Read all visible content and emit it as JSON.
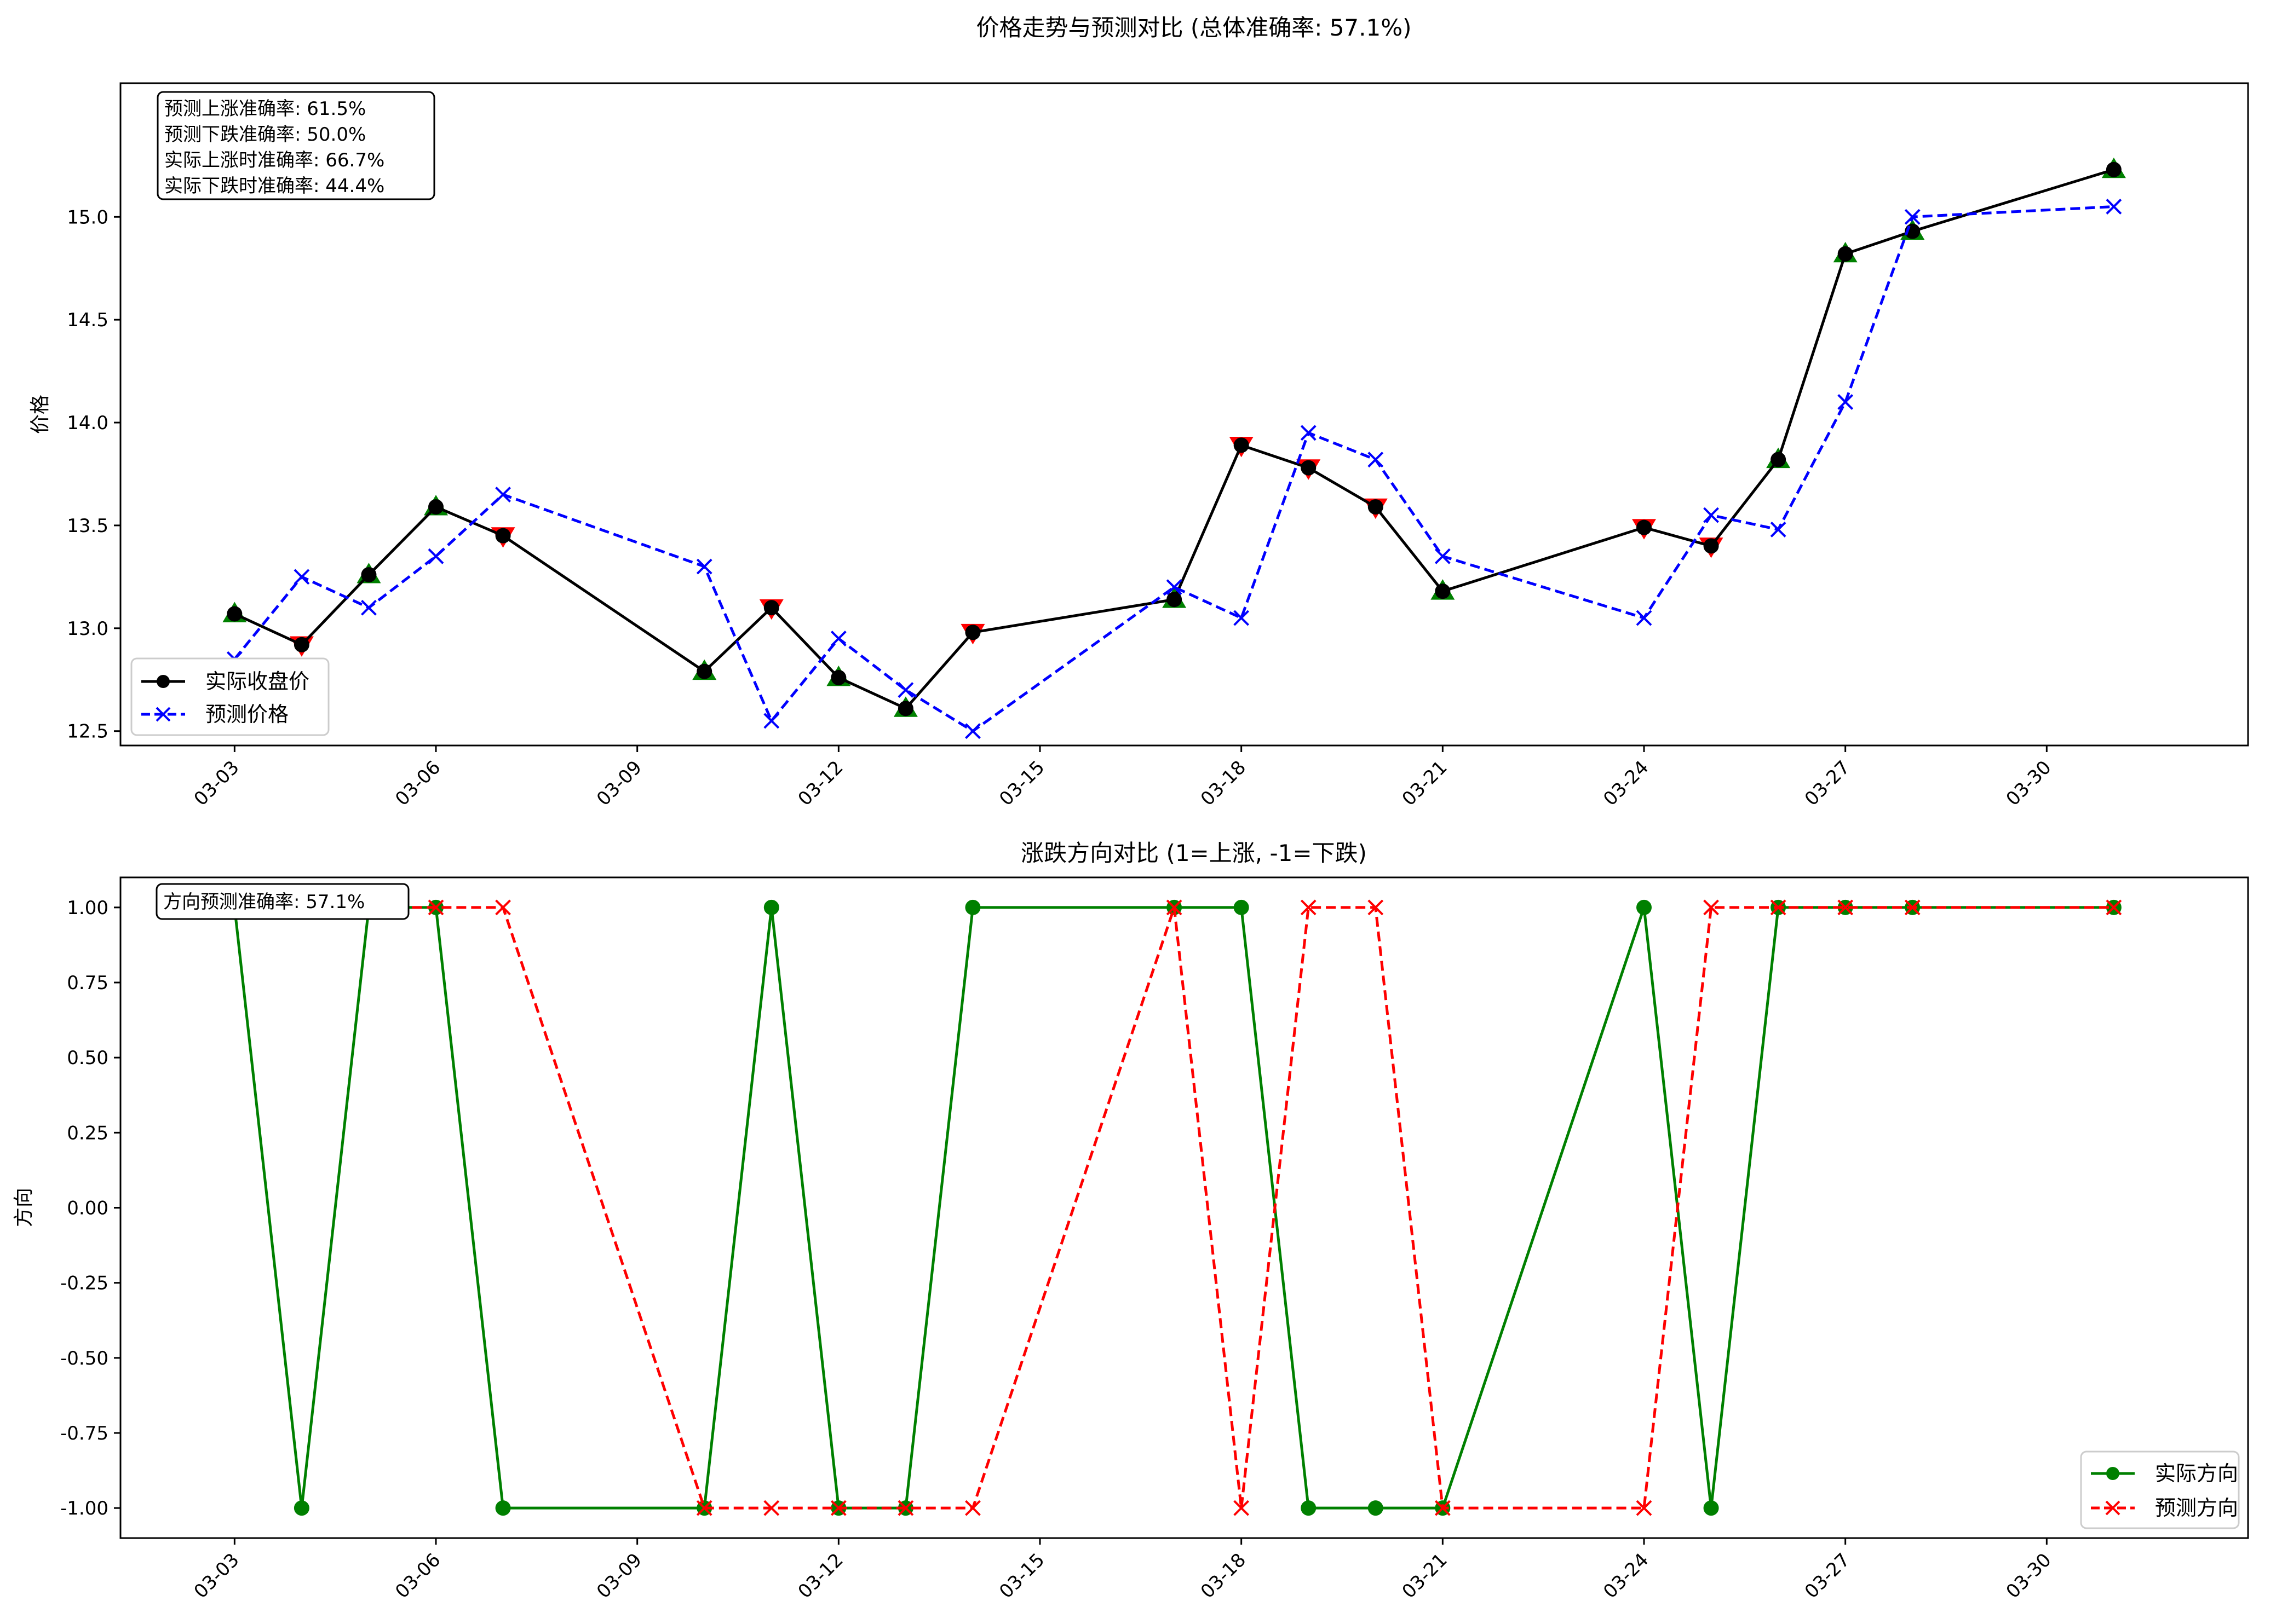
{
  "figure": {
    "top_title": "价格走势与预测对比 (总体准确率: 57.1%)",
    "bottom_title": "涨跌方向对比 (1=上涨, -1=下跌)"
  },
  "chart_data": [
    {
      "type": "line",
      "title": "价格走势与预测对比 (总体准确率: 57.1%)",
      "xlabel": "",
      "ylabel": "价格",
      "x": [
        "03-03",
        "03-04",
        "03-05",
        "03-06",
        "03-07",
        "03-10",
        "03-11",
        "03-12",
        "03-13",
        "03-14",
        "03-17",
        "03-18",
        "03-19",
        "03-20",
        "03-21",
        "03-24",
        "03-25",
        "03-26",
        "03-27",
        "03-28",
        "03-31"
      ],
      "xticks": [
        "03-03",
        "03-06",
        "03-09",
        "03-12",
        "03-15",
        "03-18",
        "03-21",
        "03-24",
        "03-27",
        "03-30"
      ],
      "ylim": [
        12.43,
        15.65
      ],
      "yticks": [
        "12.5",
        "13.0",
        "13.5",
        "14.0",
        "14.5",
        "15.0"
      ],
      "series": [
        {
          "name": "实际收盘价",
          "color": "#000000",
          "style": "solid",
          "marker": "circle",
          "values": [
            13.07,
            12.92,
            13.26,
            13.59,
            13.45,
            12.79,
            13.1,
            12.76,
            12.61,
            12.98,
            13.14,
            13.89,
            13.78,
            13.59,
            13.18,
            13.49,
            13.4,
            13.82,
            14.82,
            14.93,
            15.23
          ]
        },
        {
          "name": "预测价格",
          "color": "#0000ff",
          "style": "dashed",
          "marker": "x",
          "values": [
            12.85,
            13.25,
            13.1,
            13.35,
            13.65,
            13.3,
            12.55,
            12.95,
            12.7,
            12.5,
            13.2,
            13.05,
            13.95,
            13.82,
            13.35,
            13.05,
            13.55,
            13.48,
            14.1,
            15.0,
            15.05
          ]
        }
      ],
      "direction_markers": [
        "up",
        "down",
        "up",
        "up",
        "down",
        "up",
        "down",
        "up",
        "up",
        "down",
        "up",
        "down",
        "down",
        "down",
        "up",
        "down",
        "down",
        "up",
        "up",
        "up",
        "up"
      ],
      "marker_colors": {
        "up": "#008000",
        "down": "#ff0000"
      },
      "annotation": [
        "预测上涨准确率: 61.5%",
        "预测下跌准确率: 50.0%",
        "实际上涨时准确率: 66.7%",
        "实际下跌时准确率: 44.4%"
      ],
      "legend_position": "lower left",
      "grid": false
    },
    {
      "type": "line",
      "title": "涨跌方向对比 (1=上涨, -1=下跌)",
      "xlabel": "",
      "ylabel": "方向",
      "x": [
        "03-03",
        "03-04",
        "03-05",
        "03-06",
        "03-07",
        "03-10",
        "03-11",
        "03-12",
        "03-13",
        "03-14",
        "03-17",
        "03-18",
        "03-19",
        "03-20",
        "03-21",
        "03-24",
        "03-25",
        "03-26",
        "03-27",
        "03-28",
        "03-31"
      ],
      "xticks": [
        "03-03",
        "03-06",
        "03-09",
        "03-12",
        "03-15",
        "03-18",
        "03-21",
        "03-24",
        "03-27",
        "03-30"
      ],
      "ylim": [
        -1.1,
        1.1
      ],
      "yticks": [
        "-1.00",
        "-0.75",
        "-0.50",
        "-0.25",
        "0.00",
        "0.25",
        "0.50",
        "0.75",
        "1.00"
      ],
      "series": [
        {
          "name": "实际方向",
          "color": "#008000",
          "style": "solid",
          "marker": "circle",
          "values": [
            1,
            -1,
            1,
            1,
            -1,
            -1,
            1,
            -1,
            -1,
            1,
            1,
            1,
            -1,
            -1,
            -1,
            1,
            -1,
            1,
            1,
            1,
            1
          ]
        },
        {
          "name": "预测方向",
          "color": "#ff0000",
          "style": "dashed",
          "marker": "x",
          "values": [
            1,
            1,
            1,
            1,
            1,
            -1,
            -1,
            -1,
            -1,
            -1,
            1,
            -1,
            1,
            1,
            -1,
            -1,
            1,
            1,
            1,
            1,
            1
          ]
        }
      ],
      "annotation": [
        "方向预测准确率: 57.1%"
      ],
      "legend_position": "lower right",
      "grid": false
    }
  ]
}
